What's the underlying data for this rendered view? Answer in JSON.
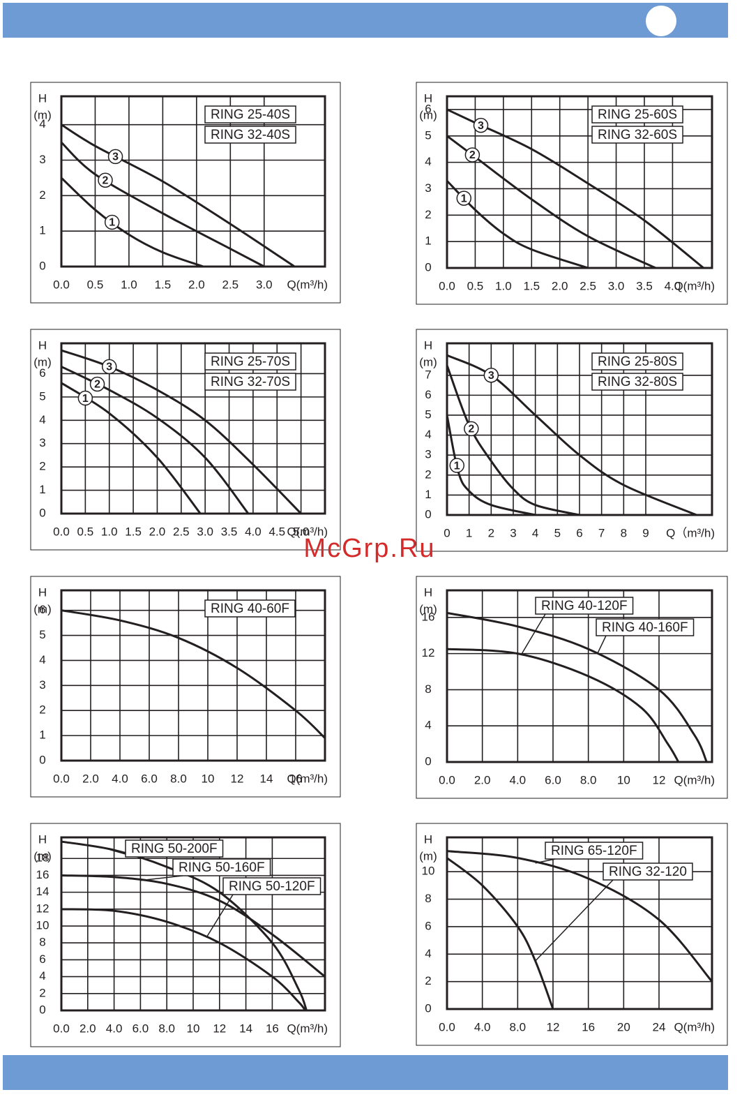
{
  "watermark": "McGrp.Ru",
  "chart_data": [
    {
      "type": "line",
      "models": [
        "RING 25-40S",
        "RING 32-40S"
      ],
      "ylabel": "H",
      "yunit": "(m)",
      "xlabel": "Q(m³/h)",
      "grid": true,
      "xlim": [
        0,
        3.9
      ],
      "ylim": [
        0,
        4.8
      ],
      "xticks": [
        {
          "value": 0,
          "label": "0.0"
        },
        0.5,
        {
          "value": 1,
          "label": "1.0"
        },
        1.5,
        {
          "value": 2,
          "label": "2.0"
        },
        2.5,
        {
          "value": 3,
          "label": "3.0"
        }
      ],
      "yticks": [
        0,
        1,
        2,
        3,
        4
      ],
      "series": [
        {
          "name": "1",
          "color": "#231f20",
          "x": [
            0,
            0.5,
            1,
            1.5,
            2.1
          ],
          "values": [
            2.5,
            1.6,
            0.9,
            0.4,
            0
          ]
        },
        {
          "name": "2",
          "color": "#231f20",
          "x": [
            0,
            0.5,
            1.5,
            2.5,
            3
          ],
          "values": [
            3.5,
            2.6,
            1.5,
            0.5,
            0
          ]
        },
        {
          "name": "3",
          "color": "#231f20",
          "x": [
            0,
            0.5,
            1.5,
            2.5,
            3.45
          ],
          "values": [
            4,
            3.4,
            2.4,
            1.2,
            0
          ]
        }
      ]
    },
    {
      "type": "line",
      "models": [
        "RING 25-60S",
        "RING 32-60S"
      ],
      "ylabel": "H",
      "yunit": "(m)",
      "xlabel": "Q(m³/h)",
      "grid": true,
      "xlim": [
        0,
        4.7
      ],
      "ylim": [
        0,
        6.5
      ],
      "xticks": [
        {
          "value": 0,
          "label": "0.0"
        },
        0.5,
        {
          "value": 1,
          "label": "1.0"
        },
        1.5,
        {
          "value": 2,
          "label": "2.0"
        },
        2.5,
        {
          "value": 3,
          "label": "3.0"
        },
        3.5,
        {
          "value": 4,
          "label": "4.0"
        }
      ],
      "yticks": [
        0,
        1,
        2,
        3,
        4,
        5,
        6
      ],
      "series": [
        {
          "name": "1",
          "color": "#231f20",
          "x": [
            0,
            0.5,
            1,
            1.5,
            2.5
          ],
          "values": [
            3.3,
            2.2,
            1.3,
            0.7,
            0
          ]
        },
        {
          "name": "2",
          "color": "#231f20",
          "x": [
            0,
            0.5,
            1.5,
            2.5,
            3.7
          ],
          "values": [
            5,
            4.2,
            2.6,
            1.2,
            0
          ]
        },
        {
          "name": "3",
          "color": "#231f20",
          "x": [
            0,
            0.5,
            1.5,
            2.5,
            3.5,
            4.55
          ],
          "values": [
            6,
            5.5,
            4.5,
            3.2,
            1.8,
            0
          ]
        }
      ]
    },
    {
      "type": "line",
      "models": [
        "RING 25-70S",
        "RING 32-70S"
      ],
      "ylabel": "H",
      "yunit": "(m)",
      "xlabel": "Q(m³/h)",
      "grid": true,
      "xlim": [
        0,
        5.5
      ],
      "ylim": [
        0,
        7.3
      ],
      "xticks": [
        {
          "value": 0,
          "label": "0.0"
        },
        0.5,
        {
          "value": 1,
          "label": "1.0"
        },
        1.5,
        {
          "value": 2,
          "label": "2.0"
        },
        2.5,
        {
          "value": 3,
          "label": "3.0"
        },
        3.5,
        {
          "value": 4,
          "label": "4.0"
        },
        4.5,
        {
          "value": 5,
          "label": "5.0"
        }
      ],
      "yticks": [
        0,
        1,
        2,
        3,
        4,
        5,
        6
      ],
      "series": [
        {
          "name": "1",
          "color": "#231f20",
          "x": [
            0,
            1,
            2,
            2.9
          ],
          "values": [
            5.6,
            4.3,
            2.4,
            0
          ]
        },
        {
          "name": "2",
          "color": "#231f20",
          "x": [
            0,
            1,
            2,
            3,
            3.9
          ],
          "values": [
            6.3,
            5.3,
            4.1,
            2.4,
            0
          ]
        },
        {
          "name": "3",
          "color": "#231f20",
          "x": [
            0,
            1,
            2,
            3,
            4,
            5
          ],
          "values": [
            7,
            6.3,
            5.3,
            4,
            2.1,
            0
          ]
        }
      ]
    },
    {
      "type": "line",
      "models": [
        "RING 25-80S",
        "RING 32-80S"
      ],
      "ylabel": "H",
      "yunit": "(m)",
      "xlabel": "Q（m³/h)",
      "grid": true,
      "xlim": [
        0,
        12
      ],
      "ylim": [
        0,
        8.6
      ],
      "xticks": [
        0,
        1,
        2,
        3,
        4,
        5,
        6,
        7,
        8,
        9
      ],
      "yticks": [
        0,
        1,
        2,
        3,
        4,
        5,
        6,
        7
      ],
      "series": [
        {
          "name": "1",
          "color": "#231f20",
          "x": [
            0,
            0.5,
            1,
            2,
            4
          ],
          "values": [
            5,
            2.2,
            1.2,
            0.5,
            0
          ]
        },
        {
          "name": "2",
          "color": "#231f20",
          "x": [
            0,
            1,
            2,
            3,
            4,
            6
          ],
          "values": [
            7.5,
            4.5,
            2.7,
            1.3,
            0.5,
            0
          ]
        },
        {
          "name": "3",
          "color": "#231f20",
          "x": [
            0,
            2,
            4,
            6,
            8,
            11.3
          ],
          "values": [
            8,
            7,
            5,
            3,
            1.5,
            0
          ]
        }
      ]
    },
    {
      "type": "line",
      "models": [
        "RING 40-60F"
      ],
      "ylabel": "H",
      "yunit": "(m)",
      "xlabel": "Q(m³/h)",
      "grid": true,
      "xlim": [
        0,
        18
      ],
      "ylim": [
        0,
        6.8
      ],
      "xticks": [
        {
          "value": 0,
          "label": "0.0"
        },
        {
          "value": 2,
          "label": "2.0"
        },
        {
          "value": 4,
          "label": "4.0"
        },
        {
          "value": 6,
          "label": "6.0"
        },
        {
          "value": 8,
          "label": "8.0"
        },
        10,
        12,
        14,
        16
      ],
      "yticks": [
        0,
        1,
        2,
        3,
        4,
        5,
        6
      ],
      "series": [
        {
          "color": "#231f20",
          "x": [
            0,
            4,
            8,
            12,
            16,
            18
          ],
          "values": [
            6,
            5.6,
            4.9,
            3.7,
            2,
            0.9
          ]
        }
      ]
    },
    {
      "type": "line",
      "ylabel": "H",
      "yunit": "(m)",
      "xlabel": "Q(m³/h)",
      "grid": true,
      "xlim": [
        0,
        15
      ],
      "ylim": [
        0,
        19
      ],
      "xticks": [
        {
          "value": 0,
          "label": "0.0"
        },
        {
          "value": 2,
          "label": "2.0"
        },
        {
          "value": 4,
          "label": "4.0"
        },
        {
          "value": 6,
          "label": "6.0"
        },
        {
          "value": 8,
          "label": "8.0"
        },
        10,
        12
      ],
      "yticks": [
        0,
        4,
        8,
        12,
        16
      ],
      "series": [
        {
          "name": "RING 40-120F",
          "color": "#231f20",
          "x": [
            0,
            4,
            8,
            11,
            12.5,
            13.1
          ],
          "values": [
            12.5,
            12,
            9.5,
            6,
            2,
            0
          ]
        },
        {
          "name": "RING 40-160F",
          "color": "#231f20",
          "x": [
            0,
            4,
            8,
            12,
            14,
            14.7
          ],
          "values": [
            16.5,
            15,
            12.5,
            8,
            3,
            0
          ]
        }
      ]
    },
    {
      "type": "line",
      "ylabel": "H",
      "yunit": "(m)",
      "xlabel": "Q(m³/h)",
      "grid": true,
      "xlim": [
        0,
        20
      ],
      "ylim": [
        0,
        20.5
      ],
      "xticks": [
        {
          "value": 0,
          "label": "0.0"
        },
        {
          "value": 2,
          "label": "2.0"
        },
        {
          "value": 4,
          "label": "4.0"
        },
        {
          "value": 6,
          "label": "6.0"
        },
        {
          "value": 8,
          "label": "8.0"
        },
        10,
        12,
        14,
        16
      ],
      "yticks": [
        0,
        2,
        4,
        6,
        8,
        10,
        12,
        14,
        16,
        18
      ],
      "series": [
        {
          "name": "RING 50-200F",
          "color": "#231f20",
          "x": [
            0,
            4,
            8,
            12,
            16,
            18,
            18.6
          ],
          "values": [
            20,
            19,
            17,
            14,
            8,
            2.5,
            0
          ]
        },
        {
          "name": "RING 50-160F",
          "color": "#231f20",
          "x": [
            0,
            4,
            8,
            12,
            16,
            20
          ],
          "values": [
            16,
            15.8,
            15,
            13,
            9,
            4
          ]
        },
        {
          "name": "RING 50-120F",
          "color": "#231f20",
          "x": [
            0,
            4,
            8,
            12,
            16,
            18,
            18.5
          ],
          "values": [
            12,
            11.8,
            10.5,
            8,
            4,
            1,
            0
          ]
        }
      ]
    },
    {
      "type": "line",
      "ylabel": "H",
      "yunit": "(m)",
      "xlabel": "Q(m³/h)",
      "grid": true,
      "xlim": [
        0,
        30
      ],
      "ylim": [
        0,
        12.5
      ],
      "xticks": [
        {
          "value": 0,
          "label": "0.0"
        },
        {
          "value": 4,
          "label": "4.0"
        },
        {
          "value": 8,
          "label": "8.0"
        },
        12,
        16,
        20,
        24
      ],
      "yticks": [
        0,
        2,
        4,
        6,
        8,
        10
      ],
      "series": [
        {
          "name": "RING 65-120F",
          "color": "#231f20",
          "x": [
            0,
            8,
            16,
            24,
            30
          ],
          "values": [
            11.5,
            11,
            9.5,
            6.5,
            2
          ]
        },
        {
          "name": "RING 32-120",
          "color": "#231f20",
          "x": [
            0,
            4,
            8,
            10,
            12
          ],
          "values": [
            11,
            9,
            6,
            3.5,
            0
          ]
        }
      ]
    }
  ]
}
